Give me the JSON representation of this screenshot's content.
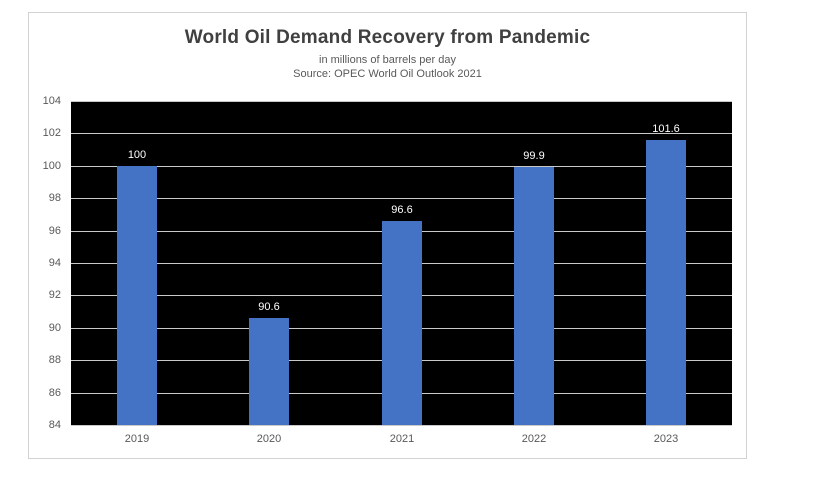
{
  "chart": {
    "title": "World Oil Demand Recovery from Pandemic",
    "subtitle": "in millions of barrels per day",
    "source": "Source: OPEC World Oil Outlook 2021"
  },
  "chart_data": {
    "type": "bar",
    "title": "World Oil Demand Recovery from Pandemic",
    "subtitle": "in millions of barrels per day",
    "source": "Source: OPEC World Oil Outlook 2021",
    "categories": [
      "2019",
      "2020",
      "2021",
      "2022",
      "2023"
    ],
    "values": [
      100,
      90.6,
      96.6,
      99.9,
      101.6
    ],
    "data_labels": [
      "100",
      "90.6",
      "96.6",
      "99.9",
      "101.6"
    ],
    "xlabel": "",
    "ylabel": "",
    "ylim": [
      84,
      104
    ],
    "yticks": [
      84,
      86,
      88,
      90,
      92,
      94,
      96,
      98,
      100,
      102,
      104
    ],
    "grid": true,
    "legend": "none",
    "colors": {
      "bar": "#4472C4",
      "plot_background": "#000000",
      "gridline": "#c9c9c9",
      "title_text": "#404040",
      "subtitle_text": "#595959",
      "axis_text": "#595959",
      "data_label_text": "#ffffff",
      "chart_border": "#d2d2d2",
      "chart_background": "#ffffff"
    }
  }
}
